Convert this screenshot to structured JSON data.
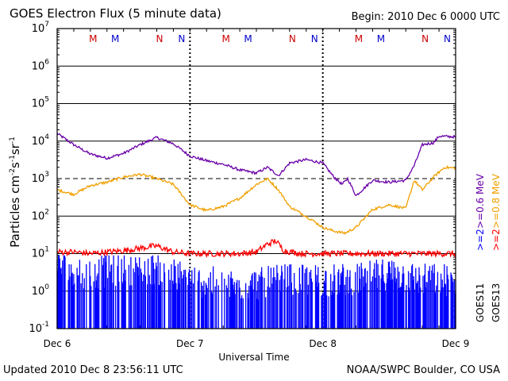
{
  "header": {
    "title": "GOES Electron Flux (5 minute data)",
    "begin": "Begin: 2010 Dec 6 0000 UTC"
  },
  "footer": {
    "updated": "Updated 2010 Dec  8 23:56:11 UTC",
    "credit": "NOAA/SWPC Boulder, CO USA"
  },
  "legend": {
    "goes11": "GOES11",
    "goes13": "GOES13",
    "ge2_goes11": ">=2",
    "ge06": ">=0.6 MeV",
    "ge2_goes13": ">=2",
    "ge08": ">=0.8 MeV"
  },
  "colors": {
    "purple": "#6a00a8",
    "orange": "#f0a000",
    "red": "#ff0000",
    "blue": "#0000ff",
    "marker_m": "#cc0000",
    "marker_n_red": "#cc0000",
    "marker_blue": "#0000cc"
  },
  "chart_data": {
    "type": "line",
    "xlabel": "Universal Time",
    "ylabel": "Particles cm⁻²s⁻¹sr⁻¹",
    "yscale": "log",
    "ylim": [
      0.1,
      10000000
    ],
    "xlim": [
      0,
      72
    ],
    "x_unit": "hours since 2010 Dec 6 0000 UTC",
    "x_ticks": [
      {
        "x": 0,
        "label": "Dec 6"
      },
      {
        "x": 24,
        "label": "Dec 7"
      },
      {
        "x": 48,
        "label": "Dec 8"
      },
      {
        "x": 72,
        "label": "Dec 9"
      }
    ],
    "y_ticks": [
      {
        "exp": -1,
        "label": "10",
        "sup": "-1"
      },
      {
        "exp": 0,
        "label": "10",
        "sup": "0"
      },
      {
        "exp": 1,
        "label": "10",
        "sup": "1"
      },
      {
        "exp": 2,
        "label": "10",
        "sup": "2"
      },
      {
        "exp": 3,
        "label": "10",
        "sup": "3"
      },
      {
        "exp": 4,
        "label": "10",
        "sup": "4"
      },
      {
        "exp": 5,
        "label": "10",
        "sup": "5"
      },
      {
        "exp": 6,
        "label": "10",
        "sup": "6"
      },
      {
        "exp": 7,
        "label": "10",
        "sup": "7"
      }
    ],
    "threshold_lines": [
      1000
    ],
    "markers": [
      {
        "x": 6.5,
        "label": "M",
        "color": "#cc0000"
      },
      {
        "x": 10.5,
        "label": "M",
        "color": "#0000cc"
      },
      {
        "x": 18.5,
        "label": "N",
        "color": "#cc0000"
      },
      {
        "x": 22.5,
        "label": "N",
        "color": "#0000cc"
      },
      {
        "x": 30.5,
        "label": "M",
        "color": "#cc0000"
      },
      {
        "x": 34.5,
        "label": "M",
        "color": "#0000cc"
      },
      {
        "x": 42.5,
        "label": "N",
        "color": "#cc0000"
      },
      {
        "x": 46.5,
        "label": "N",
        "color": "#0000cc"
      },
      {
        "x": 54.5,
        "label": "M",
        "color": "#cc0000"
      },
      {
        "x": 58.5,
        "label": "M",
        "color": "#0000cc"
      },
      {
        "x": 66.5,
        "label": "N",
        "color": "#cc0000"
      },
      {
        "x": 70.5,
        "label": "N",
        "color": "#0000cc"
      }
    ],
    "series": [
      {
        "name": "GOES11 >=0.6 MeV",
        "color": "#6a00a8",
        "x": [
          0,
          3,
          6,
          9,
          12,
          15,
          18,
          21,
          24,
          27,
          30,
          33,
          36,
          38,
          40,
          42,
          45,
          48,
          50,
          51.5,
          52.5,
          54,
          57,
          60,
          63,
          64.5,
          66,
          68,
          69,
          72
        ],
        "y": [
          16000,
          8000,
          4500,
          3500,
          4700,
          8000,
          12500,
          8500,
          4000,
          3000,
          2400,
          1700,
          1400,
          2000,
          1200,
          2600,
          3200,
          2600,
          1100,
          700,
          1000,
          350,
          900,
          800,
          900,
          2200,
          8000,
          9000,
          13500,
          13000
        ]
      },
      {
        "name": "GOES13 >=0.8 MeV",
        "color": "#f0a000",
        "x": [
          0,
          3,
          6,
          9,
          12,
          15,
          18,
          21,
          24,
          27,
          30,
          33,
          36,
          38,
          40,
          42,
          44,
          46,
          48,
          50,
          52,
          54,
          57,
          60,
          63,
          64.5,
          66,
          68,
          70,
          72
        ],
        "y": [
          500,
          380,
          650,
          800,
          1100,
          1300,
          1000,
          700,
          200,
          140,
          180,
          300,
          700,
          1000,
          500,
          180,
          120,
          80,
          50,
          40,
          35,
          50,
          150,
          200,
          160,
          900,
          500,
          1100,
          2000,
          1900
        ]
      },
      {
        "name": "GOES11 >=2 MeV",
        "color": "#ff0000",
        "x": [
          0,
          3,
          6,
          9,
          12,
          15,
          18,
          21,
          24,
          27,
          30,
          33,
          36,
          38,
          39.5,
          41,
          44,
          48,
          51,
          54,
          57,
          60,
          63,
          66,
          69,
          72
        ],
        "y": [
          11,
          11,
          10,
          11,
          12,
          14,
          16,
          11,
          10,
          10,
          10,
          10,
          11,
          18,
          22,
          12,
          10,
          10,
          10,
          10,
          10,
          10,
          10,
          10,
          10,
          10
        ]
      },
      {
        "name": "GOES13 >=2 MeV",
        "color": "#0000ff",
        "x": [
          0,
          6,
          12,
          18,
          24,
          30,
          36,
          42,
          48,
          54,
          60,
          66,
          72
        ],
        "y": [
          5,
          3,
          4,
          4,
          2,
          1.5,
          1.5,
          2,
          2,
          2,
          3,
          2,
          2
        ]
      }
    ]
  }
}
